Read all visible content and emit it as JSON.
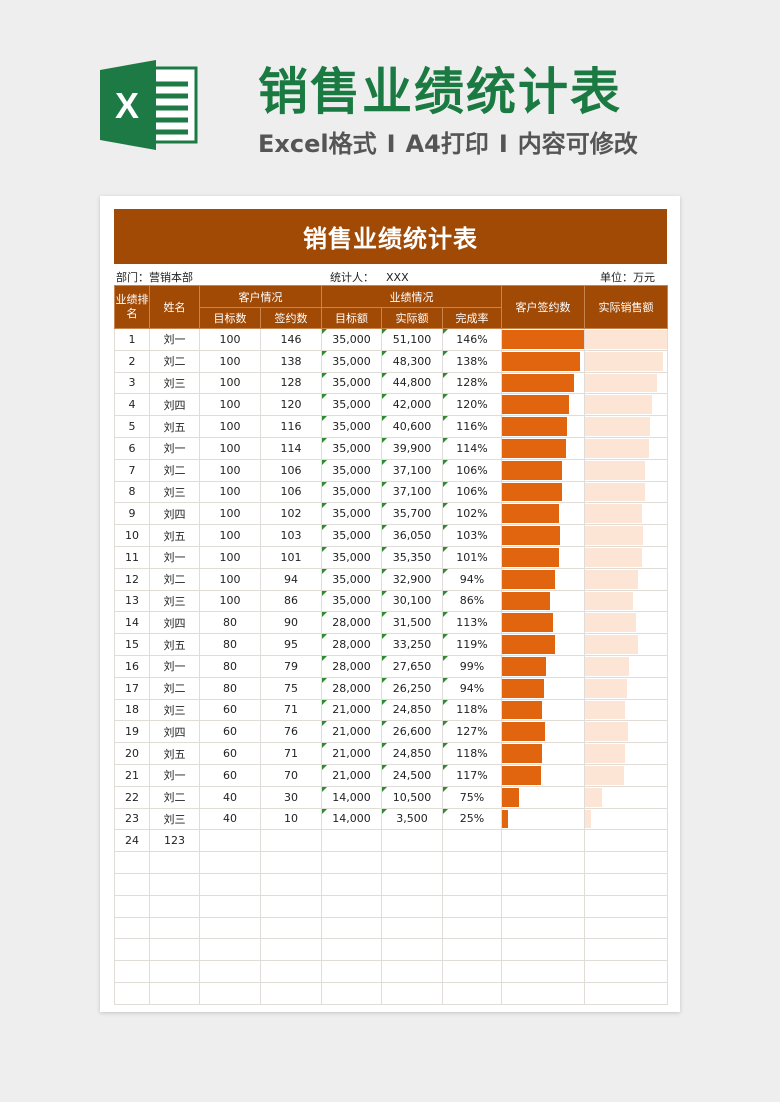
{
  "header": {
    "logo_letter": "X",
    "title": "销售业绩统计表",
    "tags": [
      "Excel格式",
      "A4打印",
      "内容可修改"
    ],
    "separator": "I"
  },
  "sheet": {
    "banner_title": "销售业绩统计表",
    "info": {
      "dept_label": "部门：",
      "dept_value": "营销本部",
      "stat_label": "统计人：",
      "stat_value": "XXX",
      "unit_label": "单位：",
      "unit_value": "万元"
    },
    "columns": {
      "rank": "业绩排名",
      "name": "姓名",
      "customer_group": "客户情况",
      "target_count": "目标数",
      "signed_count": "签约数",
      "perf_group": "业绩情况",
      "target_amount": "目标额",
      "actual_amount": "实际额",
      "completion": "完成率",
      "bar_signed": "客户签约数",
      "bar_sales": "实际销售额"
    },
    "rows": [
      {
        "rank": "1",
        "name": "刘一",
        "target": "100",
        "signed": "146",
        "target_amt": "35,000",
        "actual_amt": "51,100",
        "rate": "146%",
        "signed_n": 146,
        "actual_n": 51100
      },
      {
        "rank": "2",
        "name": "刘二",
        "target": "100",
        "signed": "138",
        "target_amt": "35,000",
        "actual_amt": "48,300",
        "rate": "138%",
        "signed_n": 138,
        "actual_n": 48300
      },
      {
        "rank": "3",
        "name": "刘三",
        "target": "100",
        "signed": "128",
        "target_amt": "35,000",
        "actual_amt": "44,800",
        "rate": "128%",
        "signed_n": 128,
        "actual_n": 44800
      },
      {
        "rank": "4",
        "name": "刘四",
        "target": "100",
        "signed": "120",
        "target_amt": "35,000",
        "actual_amt": "42,000",
        "rate": "120%",
        "signed_n": 120,
        "actual_n": 42000
      },
      {
        "rank": "5",
        "name": "刘五",
        "target": "100",
        "signed": "116",
        "target_amt": "35,000",
        "actual_amt": "40,600",
        "rate": "116%",
        "signed_n": 116,
        "actual_n": 40600
      },
      {
        "rank": "6",
        "name": "刘一",
        "target": "100",
        "signed": "114",
        "target_amt": "35,000",
        "actual_amt": "39,900",
        "rate": "114%",
        "signed_n": 114,
        "actual_n": 39900
      },
      {
        "rank": "7",
        "name": "刘二",
        "target": "100",
        "signed": "106",
        "target_amt": "35,000",
        "actual_amt": "37,100",
        "rate": "106%",
        "signed_n": 106,
        "actual_n": 37100
      },
      {
        "rank": "8",
        "name": "刘三",
        "target": "100",
        "signed": "106",
        "target_amt": "35,000",
        "actual_amt": "37,100",
        "rate": "106%",
        "signed_n": 106,
        "actual_n": 37100
      },
      {
        "rank": "9",
        "name": "刘四",
        "target": "100",
        "signed": "102",
        "target_amt": "35,000",
        "actual_amt": "35,700",
        "rate": "102%",
        "signed_n": 102,
        "actual_n": 35700
      },
      {
        "rank": "10",
        "name": "刘五",
        "target": "100",
        "signed": "103",
        "target_amt": "35,000",
        "actual_amt": "36,050",
        "rate": "103%",
        "signed_n": 103,
        "actual_n": 36050
      },
      {
        "rank": "11",
        "name": "刘一",
        "target": "100",
        "signed": "101",
        "target_amt": "35,000",
        "actual_amt": "35,350",
        "rate": "101%",
        "signed_n": 101,
        "actual_n": 35350
      },
      {
        "rank": "12",
        "name": "刘二",
        "target": "100",
        "signed": "94",
        "target_amt": "35,000",
        "actual_amt": "32,900",
        "rate": "94%",
        "signed_n": 94,
        "actual_n": 32900
      },
      {
        "rank": "13",
        "name": "刘三",
        "target": "100",
        "signed": "86",
        "target_amt": "35,000",
        "actual_amt": "30,100",
        "rate": "86%",
        "signed_n": 86,
        "actual_n": 30100
      },
      {
        "rank": "14",
        "name": "刘四",
        "target": "80",
        "signed": "90",
        "target_amt": "28,000",
        "actual_amt": "31,500",
        "rate": "113%",
        "signed_n": 90,
        "actual_n": 31500
      },
      {
        "rank": "15",
        "name": "刘五",
        "target": "80",
        "signed": "95",
        "target_amt": "28,000",
        "actual_amt": "33,250",
        "rate": "119%",
        "signed_n": 95,
        "actual_n": 33250
      },
      {
        "rank": "16",
        "name": "刘一",
        "target": "80",
        "signed": "79",
        "target_amt": "28,000",
        "actual_amt": "27,650",
        "rate": "99%",
        "signed_n": 79,
        "actual_n": 27650
      },
      {
        "rank": "17",
        "name": "刘二",
        "target": "80",
        "signed": "75",
        "target_amt": "28,000",
        "actual_amt": "26,250",
        "rate": "94%",
        "signed_n": 75,
        "actual_n": 26250
      },
      {
        "rank": "18",
        "name": "刘三",
        "target": "60",
        "signed": "71",
        "target_amt": "21,000",
        "actual_amt": "24,850",
        "rate": "118%",
        "signed_n": 71,
        "actual_n": 24850
      },
      {
        "rank": "19",
        "name": "刘四",
        "target": "60",
        "signed": "76",
        "target_amt": "21,000",
        "actual_amt": "26,600",
        "rate": "127%",
        "signed_n": 76,
        "actual_n": 26600
      },
      {
        "rank": "20",
        "name": "刘五",
        "target": "60",
        "signed": "71",
        "target_amt": "21,000",
        "actual_amt": "24,850",
        "rate": "118%",
        "signed_n": 71,
        "actual_n": 24850
      },
      {
        "rank": "21",
        "name": "刘一",
        "target": "60",
        "signed": "70",
        "target_amt": "21,000",
        "actual_amt": "24,500",
        "rate": "117%",
        "signed_n": 70,
        "actual_n": 24500
      },
      {
        "rank": "22",
        "name": "刘二",
        "target": "40",
        "signed": "30",
        "target_amt": "14,000",
        "actual_amt": "10,500",
        "rate": "75%",
        "signed_n": 30,
        "actual_n": 10500
      },
      {
        "rank": "23",
        "name": "刘三",
        "target": "40",
        "signed": "10",
        "target_amt": "14,000",
        "actual_amt": "3,500",
        "rate": "25%",
        "signed_n": 10,
        "actual_n": 3500
      },
      {
        "rank": "24",
        "name": "123",
        "target": "",
        "signed": "",
        "target_amt": "",
        "actual_amt": "",
        "rate": "",
        "signed_n": 0,
        "actual_n": 0
      },
      {
        "rank": "",
        "name": "",
        "target": "",
        "signed": "",
        "target_amt": "",
        "actual_amt": "",
        "rate": "",
        "signed_n": 0,
        "actual_n": 0
      },
      {
        "rank": "",
        "name": "",
        "target": "",
        "signed": "",
        "target_amt": "",
        "actual_amt": "",
        "rate": "",
        "signed_n": 0,
        "actual_n": 0
      },
      {
        "rank": "",
        "name": "",
        "target": "",
        "signed": "",
        "target_amt": "",
        "actual_amt": "",
        "rate": "",
        "signed_n": 0,
        "actual_n": 0
      },
      {
        "rank": "",
        "name": "",
        "target": "",
        "signed": "",
        "target_amt": "",
        "actual_amt": "",
        "rate": "",
        "signed_n": 0,
        "actual_n": 0
      },
      {
        "rank": "",
        "name": "",
        "target": "",
        "signed": "",
        "target_amt": "",
        "actual_amt": "",
        "rate": "",
        "signed_n": 0,
        "actual_n": 0
      },
      {
        "rank": "",
        "name": "",
        "target": "",
        "signed": "",
        "target_amt": "",
        "actual_amt": "",
        "rate": "",
        "signed_n": 0,
        "actual_n": 0
      },
      {
        "rank": "",
        "name": "",
        "target": "",
        "signed": "",
        "target_amt": "",
        "actual_amt": "",
        "rate": "",
        "signed_n": 0,
        "actual_n": 0
      }
    ],
    "bar_colors": {
      "signed": "#e0650e",
      "sales": "#fde5d5"
    }
  }
}
